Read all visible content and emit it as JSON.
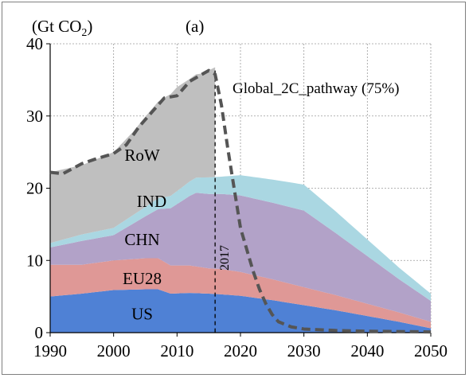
{
  "chart_data": {
    "type": "area",
    "panel_label": "(a)",
    "unit_label": "(Gt CO",
    "unit_subscript": "2",
    "unit_close": ")",
    "xlim": [
      1990,
      2050
    ],
    "ylim": [
      0,
      40
    ],
    "x_ticks": [
      "1990",
      "2000",
      "2010",
      "2020",
      "2030",
      "2040",
      "2050"
    ],
    "y_ticks": [
      "0",
      "10",
      "20",
      "30",
      "40"
    ],
    "x_tick_values": [
      1990,
      2000,
      2010,
      2020,
      2030,
      2040,
      2050
    ],
    "y_tick_values": [
      0,
      10,
      20,
      30,
      40
    ],
    "grid": true,
    "series": [
      {
        "name": "US",
        "color": "#4f81d5",
        "points": [
          [
            1990,
            5.0
          ],
          [
            1995,
            5.4
          ],
          [
            2000,
            5.9
          ],
          [
            2005,
            6.0
          ],
          [
            2007,
            6.0
          ],
          [
            2009,
            5.4
          ],
          [
            2012,
            5.5
          ],
          [
            2015,
            5.4
          ],
          [
            2017,
            5.3
          ],
          [
            2020,
            5.1
          ],
          [
            2025,
            4.5
          ],
          [
            2030,
            3.8
          ],
          [
            2035,
            3.1
          ],
          [
            2040,
            2.3
          ],
          [
            2045,
            1.5
          ],
          [
            2050,
            0.6
          ]
        ]
      },
      {
        "name": "EU28",
        "color": "#df9896",
        "points": [
          [
            1990,
            4.4
          ],
          [
            1995,
            4.0
          ],
          [
            2000,
            4.1
          ],
          [
            2005,
            4.3
          ],
          [
            2007,
            4.3
          ],
          [
            2009,
            3.9
          ],
          [
            2012,
            3.8
          ],
          [
            2015,
            3.5
          ],
          [
            2017,
            3.5
          ],
          [
            2020,
            3.3
          ],
          [
            2025,
            2.9
          ],
          [
            2030,
            2.5
          ],
          [
            2035,
            2.1
          ],
          [
            2040,
            1.7
          ],
          [
            2045,
            1.3
          ],
          [
            2050,
            0.9
          ]
        ]
      },
      {
        "name": "CHN",
        "color": "#b2a2c8",
        "points": [
          [
            1990,
            2.4
          ],
          [
            1995,
            3.3
          ],
          [
            2000,
            3.5
          ],
          [
            2005,
            5.8
          ],
          [
            2007,
            6.8
          ],
          [
            2010,
            8.5
          ],
          [
            2013,
            10.2
          ],
          [
            2015,
            10.3
          ],
          [
            2017,
            10.4
          ],
          [
            2020,
            10.6
          ],
          [
            2025,
            10.6
          ],
          [
            2030,
            10.6
          ],
          [
            2035,
            8.6
          ],
          [
            2040,
            6.6
          ],
          [
            2045,
            4.6
          ],
          [
            2050,
            2.9
          ]
        ]
      },
      {
        "name": "IND",
        "color": "#aad7e2",
        "points": [
          [
            1990,
            0.6
          ],
          [
            1995,
            0.9
          ],
          [
            2000,
            1.0
          ],
          [
            2005,
            1.3
          ],
          [
            2007,
            1.5
          ],
          [
            2010,
            1.8
          ],
          [
            2013,
            2.1
          ],
          [
            2015,
            2.3
          ],
          [
            2017,
            2.4
          ],
          [
            2020,
            2.8
          ],
          [
            2025,
            3.2
          ],
          [
            2030,
            3.6
          ],
          [
            2035,
            3.0
          ],
          [
            2040,
            2.3
          ],
          [
            2045,
            1.6
          ],
          [
            2050,
            1.0
          ]
        ]
      },
      {
        "name": "RoW",
        "color": "#bfbfbf",
        "points": [
          [
            1990,
            9.8
          ],
          [
            1995,
            9.6
          ],
          [
            2000,
            10.5
          ],
          [
            2003,
            11.5
          ],
          [
            2005,
            12.5
          ],
          [
            2008,
            13.8
          ],
          [
            2010,
            14.4
          ],
          [
            2012,
            14.2
          ],
          [
            2014,
            14.4
          ],
          [
            2016,
            15.2
          ]
        ]
      }
    ],
    "pathway": {
      "name": "Global_2C_pathway (75%)",
      "color": "#555555",
      "points": [
        [
          1990,
          22.2
        ],
        [
          1992,
          22.0
        ],
        [
          1995,
          23.4
        ],
        [
          1997,
          24.0
        ],
        [
          2000,
          24.8
        ],
        [
          2002,
          26.0
        ],
        [
          2004,
          28.5
        ],
        [
          2006,
          30.5
        ],
        [
          2008,
          32.5
        ],
        [
          2010,
          32.8
        ],
        [
          2012,
          34.8
        ],
        [
          2014,
          35.8
        ],
        [
          2015,
          36.3
        ],
        [
          2016,
          35.8
        ],
        [
          2017,
          31.5
        ],
        [
          2018,
          25.5
        ],
        [
          2019,
          20.0
        ],
        [
          2020,
          14.5
        ],
        [
          2021,
          11.5
        ],
        [
          2022,
          8.5
        ],
        [
          2023,
          6.0
        ],
        [
          2024,
          4.0
        ],
        [
          2025,
          2.5
        ],
        [
          2026,
          1.5
        ],
        [
          2028,
          0.8
        ],
        [
          2030,
          0.5
        ],
        [
          2035,
          0.3
        ],
        [
          2040,
          0.2
        ],
        [
          2050,
          0.1
        ]
      ]
    },
    "marker": {
      "x": 2016,
      "label": "2017"
    }
  }
}
